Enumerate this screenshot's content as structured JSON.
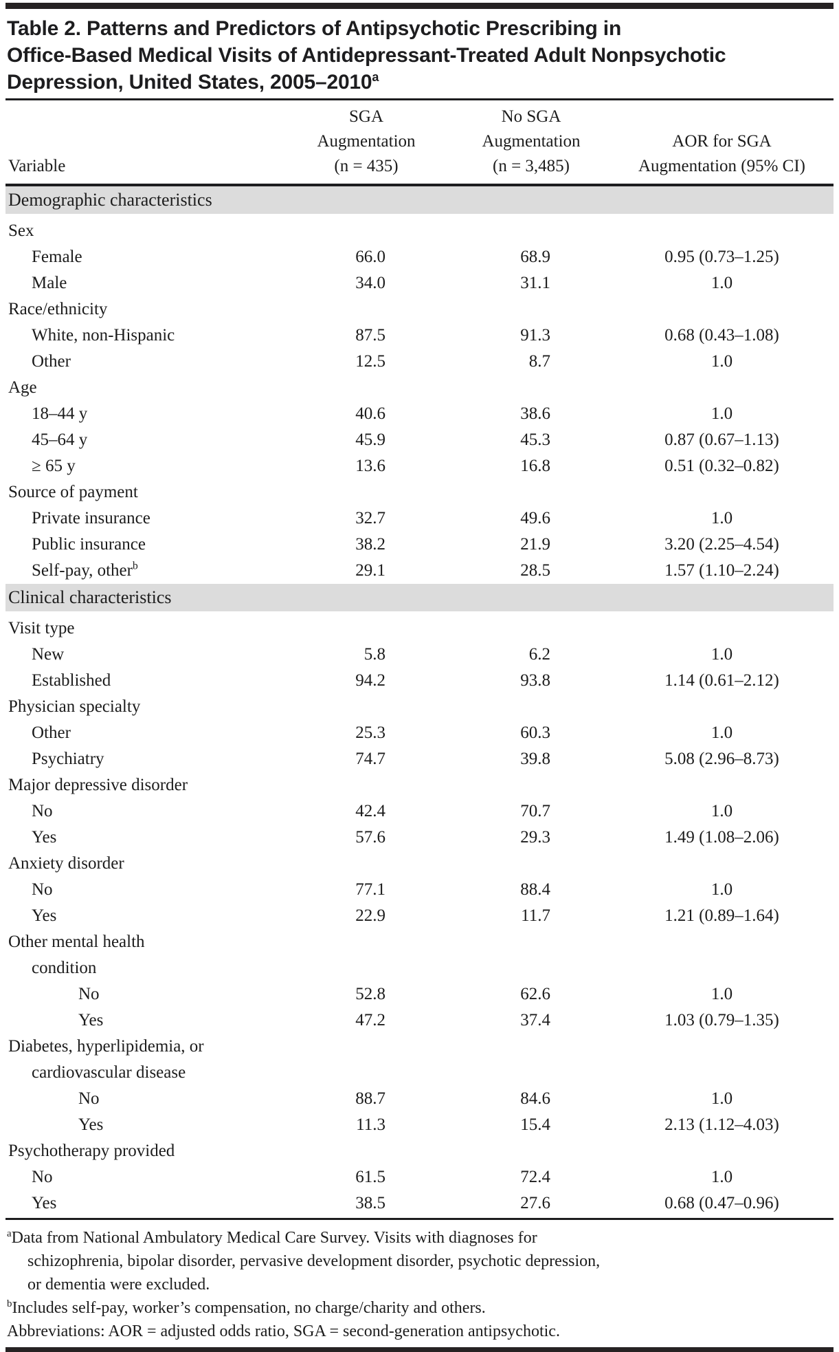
{
  "colors": {
    "section_band": "#dcdcdc",
    "rule": "#1d1d1f",
    "text": "#1c1c1c"
  },
  "title": {
    "lines": [
      "Table 2. Patterns and Predictors of Antipsychotic Prescribing in",
      "Office-Based Medical Visits of Antidepressant-Treated Adult Nonpsychotic",
      "Depression, United States, 2005–2010"
    ],
    "superscript": "a"
  },
  "header": {
    "variable": "Variable",
    "sga_lines": [
      "SGA",
      "Augmentation",
      "(n = 435)"
    ],
    "no_sga_lines": [
      "No SGA",
      "Augmentation",
      "(n = 3,485)"
    ],
    "aor_lines": [
      "AOR for SGA",
      "Augmentation (95% CI)"
    ]
  },
  "rows": [
    {
      "type": "section",
      "label": "Demographic characteristics"
    },
    {
      "type": "row",
      "indent": 0,
      "label": "Sex"
    },
    {
      "type": "row",
      "indent": 1,
      "label": "Female",
      "sga": "66.0",
      "nosga": "68.9",
      "aor": "0.95 (0.73–1.25)"
    },
    {
      "type": "row",
      "indent": 1,
      "label": "Male",
      "sga": "34.0",
      "nosga": "31.1",
      "aor": "1.0"
    },
    {
      "type": "row",
      "indent": 0,
      "label": "Race/ethnicity"
    },
    {
      "type": "row",
      "indent": 1,
      "label": "White, non-Hispanic",
      "sga": "87.5",
      "nosga": "91.3",
      "aor": "0.68 (0.43–1.08)"
    },
    {
      "type": "row",
      "indent": 1,
      "label": "Other",
      "sga": "12.5",
      "nosga": "8.7",
      "aor": "1.0"
    },
    {
      "type": "row",
      "indent": 0,
      "label": "Age"
    },
    {
      "type": "row",
      "indent": 1,
      "label": "18–44 y",
      "sga": "40.6",
      "nosga": "38.6",
      "aor": "1.0"
    },
    {
      "type": "row",
      "indent": 1,
      "label": "45–64 y",
      "sga": "45.9",
      "nosga": "45.3",
      "aor": "0.87 (0.67–1.13)"
    },
    {
      "type": "row",
      "indent": 1,
      "label": "≥ 65 y",
      "sga": "13.6",
      "nosga": "16.8",
      "aor": "0.51 (0.32–0.82)"
    },
    {
      "type": "row",
      "indent": 0,
      "label": "Source of payment"
    },
    {
      "type": "row",
      "indent": 1,
      "label": "Private insurance",
      "sga": "32.7",
      "nosga": "49.6",
      "aor": "1.0"
    },
    {
      "type": "row",
      "indent": 1,
      "label": "Public insurance",
      "sga": "38.2",
      "nosga": "21.9",
      "aor": "3.20 (2.25–4.54)"
    },
    {
      "type": "row",
      "indent": 1,
      "label": "Self-pay, other",
      "label_sup": "b",
      "sga": "29.1",
      "nosga": "28.5",
      "aor": "1.57 (1.10–2.24)"
    },
    {
      "type": "section",
      "label": "Clinical characteristics"
    },
    {
      "type": "row",
      "indent": 0,
      "label": "Visit type"
    },
    {
      "type": "row",
      "indent": 1,
      "label": "New",
      "sga": "5.8",
      "nosga": "6.2",
      "aor": "1.0"
    },
    {
      "type": "row",
      "indent": 1,
      "label": "Established",
      "sga": "94.2",
      "nosga": "93.8",
      "aor": "1.14 (0.61–2.12)"
    },
    {
      "type": "row",
      "indent": 0,
      "label": "Physician specialty"
    },
    {
      "type": "row",
      "indent": 1,
      "label": "Other",
      "sga": "25.3",
      "nosga": "60.3",
      "aor": "1.0"
    },
    {
      "type": "row",
      "indent": 1,
      "label": "Psychiatry",
      "sga": "74.7",
      "nosga": "39.8",
      "aor": "5.08 (2.96–8.73)"
    },
    {
      "type": "row",
      "indent": 0,
      "label": "Major depressive disorder"
    },
    {
      "type": "row",
      "indent": 1,
      "label": "No",
      "sga": "42.4",
      "nosga": "70.7",
      "aor": "1.0"
    },
    {
      "type": "row",
      "indent": 1,
      "label": "Yes",
      "sga": "57.6",
      "nosga": "29.3",
      "aor": "1.49 (1.08–2.06)"
    },
    {
      "type": "row",
      "indent": 0,
      "label": "Anxiety disorder"
    },
    {
      "type": "row",
      "indent": 1,
      "label": "No",
      "sga": "77.1",
      "nosga": "88.4",
      "aor": "1.0"
    },
    {
      "type": "row",
      "indent": 1,
      "label": "Yes",
      "sga": "22.9",
      "nosga": "11.7",
      "aor": "1.21 (0.89–1.64)"
    },
    {
      "type": "row",
      "indent": 0,
      "label": "Other mental health"
    },
    {
      "type": "row",
      "indent": 1,
      "label": "condition"
    },
    {
      "type": "row",
      "indent": 2,
      "label": "No",
      "sga": "52.8",
      "nosga": "62.6",
      "aor": "1.0"
    },
    {
      "type": "row",
      "indent": 2,
      "label": "Yes",
      "sga": "47.2",
      "nosga": "37.4",
      "aor": "1.03 (0.79–1.35)"
    },
    {
      "type": "row",
      "indent": 0,
      "label": "Diabetes, hyperlipidemia, or"
    },
    {
      "type": "row",
      "indent": 1,
      "label": "cardiovascular disease"
    },
    {
      "type": "row",
      "indent": 2,
      "label": "No",
      "sga": "88.7",
      "nosga": "84.6",
      "aor": "1.0"
    },
    {
      "type": "row",
      "indent": 2,
      "label": "Yes",
      "sga": "11.3",
      "nosga": "15.4",
      "aor": "2.13 (1.12–4.03)"
    },
    {
      "type": "row",
      "indent": 0,
      "label": "Psychotherapy provided"
    },
    {
      "type": "row",
      "indent": 1,
      "label": "No",
      "sga": "61.5",
      "nosga": "72.4",
      "aor": "1.0"
    },
    {
      "type": "row",
      "indent": 1,
      "label": "Yes",
      "sga": "38.5",
      "nosga": "27.6",
      "aor": "0.68 (0.47–0.96)"
    }
  ],
  "footnotes": [
    {
      "sup": "a",
      "lines": [
        "Data from National Ambulatory Medical Care Survey. Visits with diagnoses for",
        "schizophrenia, bipolar disorder, pervasive development disorder, psychotic depression,",
        "or dementia were excluded."
      ]
    },
    {
      "sup": "b",
      "lines": [
        "Includes self-pay, worker’s compensation, no charge/charity and others."
      ]
    },
    {
      "sup": "",
      "lines": [
        "Abbreviations: AOR = adjusted odds ratio, SGA = second-generation antipsychotic."
      ]
    }
  ]
}
